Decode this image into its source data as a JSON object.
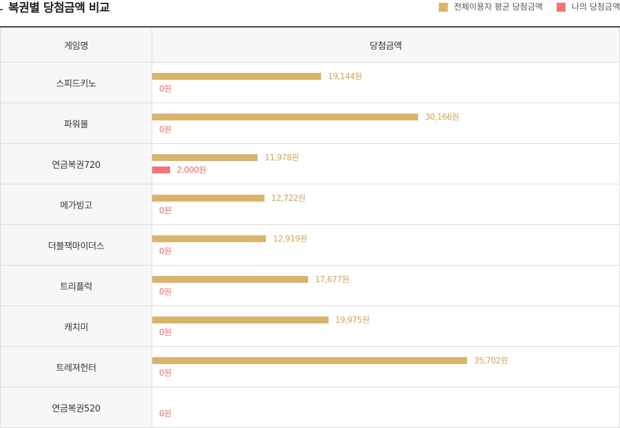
{
  "header": {
    "title": "복권별 당첨금액 비교"
  },
  "legend": {
    "avg_label": "전체이용자 평균 당첨금액",
    "mine_label": "나의 당첨금액"
  },
  "colors": {
    "avg": "#d9b46b",
    "mine": "#f07575"
  },
  "table": {
    "col_name": "게임명",
    "col_amount": "당첨금액"
  },
  "chart_data": {
    "type": "bar",
    "orientation": "horizontal",
    "categories": [
      "스피드키노",
      "파워볼",
      "연금복권720",
      "메가빙고",
      "더블잭마이더스",
      "트리플럭",
      "캐치미",
      "트레져헌터",
      "연금복권520"
    ],
    "series": [
      {
        "name": "전체이용자 평균 당첨금액",
        "values": [
          19144,
          30166,
          11978,
          12722,
          12919,
          17677,
          19975,
          35702,
          0
        ]
      },
      {
        "name": "나의 당첨금액",
        "values": [
          0,
          0,
          2000,
          0,
          0,
          0,
          0,
          0,
          0
        ]
      }
    ],
    "value_suffix": "원",
    "xlim": [
      0,
      53000
    ],
    "legend_position": "top-right"
  }
}
